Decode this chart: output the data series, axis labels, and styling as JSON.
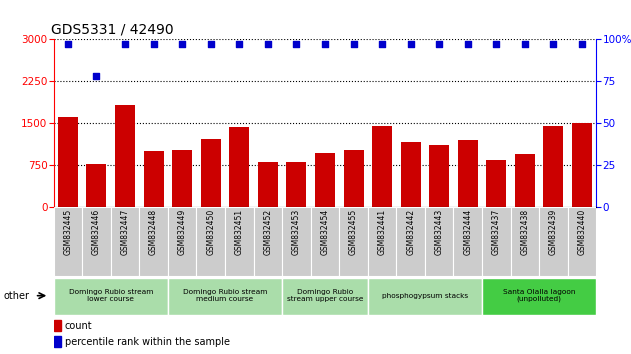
{
  "title": "GDS5331 / 42490",
  "categories": [
    "GSM832445",
    "GSM832446",
    "GSM832447",
    "GSM832448",
    "GSM832449",
    "GSM832450",
    "GSM832451",
    "GSM832452",
    "GSM832453",
    "GSM832454",
    "GSM832455",
    "GSM832441",
    "GSM832442",
    "GSM832443",
    "GSM832444",
    "GSM832437",
    "GSM832438",
    "GSM832439",
    "GSM832440"
  ],
  "counts": [
    1600,
    760,
    1820,
    1000,
    1010,
    1220,
    1430,
    810,
    810,
    960,
    1010,
    1450,
    1160,
    1100,
    1200,
    840,
    950,
    1450,
    1500
  ],
  "percentile_ranks": [
    97,
    78,
    97,
    97,
    97,
    97,
    97,
    97,
    97,
    97,
    97,
    97,
    97,
    97,
    97,
    97,
    97,
    97,
    97
  ],
  "bar_color": "#cc0000",
  "dot_color": "#0000cc",
  "ylim_left": [
    0,
    3000
  ],
  "ylim_right": [
    0,
    100
  ],
  "yticks_left": [
    0,
    750,
    1500,
    2250,
    3000
  ],
  "yticks_right": [
    0,
    25,
    50,
    75,
    100
  ],
  "groups": [
    {
      "label": "Domingo Rubio stream\nlower course",
      "start": 0,
      "end": 4,
      "color": "#aaddaa"
    },
    {
      "label": "Domingo Rubio stream\nmedium course",
      "start": 4,
      "end": 8,
      "color": "#aaddaa"
    },
    {
      "label": "Domingo Rubio\nstream upper course",
      "start": 8,
      "end": 11,
      "color": "#aaddaa"
    },
    {
      "label": "phosphogypsum stacks",
      "start": 11,
      "end": 15,
      "color": "#aaddaa"
    },
    {
      "label": "Santa Olalla lagoon\n(unpolluted)",
      "start": 15,
      "end": 19,
      "color": "#44cc44"
    }
  ],
  "other_label": "other",
  "legend_count_label": "count",
  "legend_pct_label": "percentile rank within the sample",
  "tick_label_bg": "#cccccc"
}
